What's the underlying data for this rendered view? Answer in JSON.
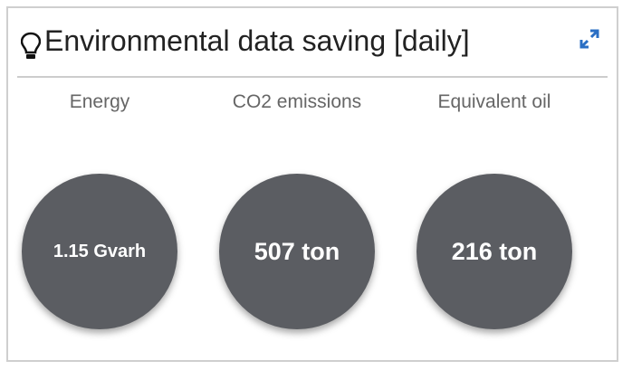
{
  "header": {
    "title": "Environmental data saving [daily]"
  },
  "metrics": [
    {
      "label": "Energy",
      "value": "1.15 Gvarh"
    },
    {
      "label": "CO2 emissions",
      "value": "507 ton"
    },
    {
      "label": "Equivalent oil",
      "value": "216 ton"
    }
  ]
}
